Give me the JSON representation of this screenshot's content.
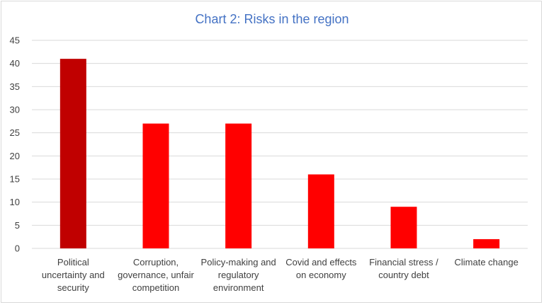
{
  "chart_data": {
    "type": "bar",
    "title": "Chart 2: Risks in the region",
    "xlabel": "",
    "ylabel": "",
    "categories": [
      [
        "Political",
        "uncertainty and",
        "security"
      ],
      [
        "Corruption,",
        "governance, unfair",
        "competition"
      ],
      [
        "Policy-making and",
        "regulatory",
        "environment"
      ],
      [
        "Covid and effects",
        "on economy"
      ],
      [
        "Financial stress /",
        "country debt"
      ],
      [
        "Climate change"
      ]
    ],
    "values": [
      41,
      27,
      27,
      16,
      9,
      2
    ],
    "ylim": [
      0,
      45
    ],
    "yticks": [
      0,
      5,
      10,
      15,
      20,
      25,
      30,
      35,
      40,
      45
    ],
    "grid": true,
    "legend": "none",
    "colors": {
      "bar": "#ff0000",
      "highlight_bar": "#c00000",
      "highlight_index": 0,
      "grid": "#d9d9d9",
      "title": "#4472c4"
    }
  }
}
